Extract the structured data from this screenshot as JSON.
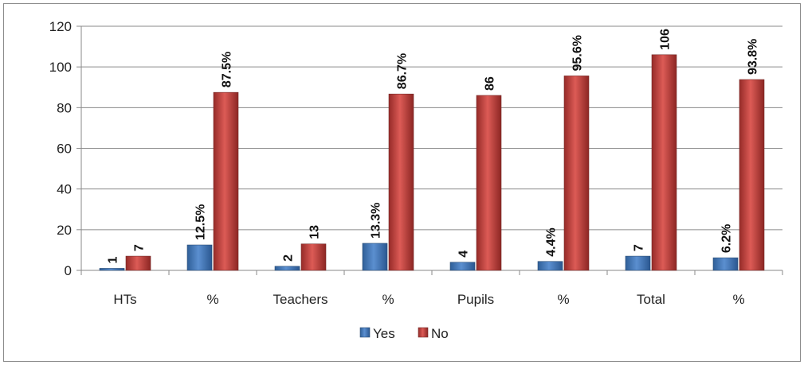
{
  "chart_data": {
    "type": "bar",
    "categories": [
      "HTs",
      "%",
      "Teachers",
      "%",
      "Pupils",
      "%",
      "Total",
      "%"
    ],
    "series": [
      {
        "name": "Yes",
        "color": "#4f81bd",
        "values": [
          1,
          12.5,
          2,
          13.3,
          4,
          4.4,
          7,
          6.2
        ],
        "labels": [
          "1",
          "12.5%",
          "2",
          "13.3%",
          "4",
          "4.4%",
          "7",
          "6.2%"
        ]
      },
      {
        "name": "No",
        "color": "#c0504d",
        "values": [
          7,
          87.5,
          13,
          86.7,
          86,
          95.6,
          106,
          93.8
        ],
        "labels": [
          "7",
          "87.5%",
          "13",
          "86.7%",
          "86",
          "95.6%",
          "106",
          "93.8%"
        ]
      }
    ],
    "ylim": [
      0,
      120
    ],
    "yticks": [
      "0",
      "20",
      "40",
      "60",
      "80",
      "100",
      "120"
    ],
    "grid": true,
    "legend_position": "bottom"
  }
}
